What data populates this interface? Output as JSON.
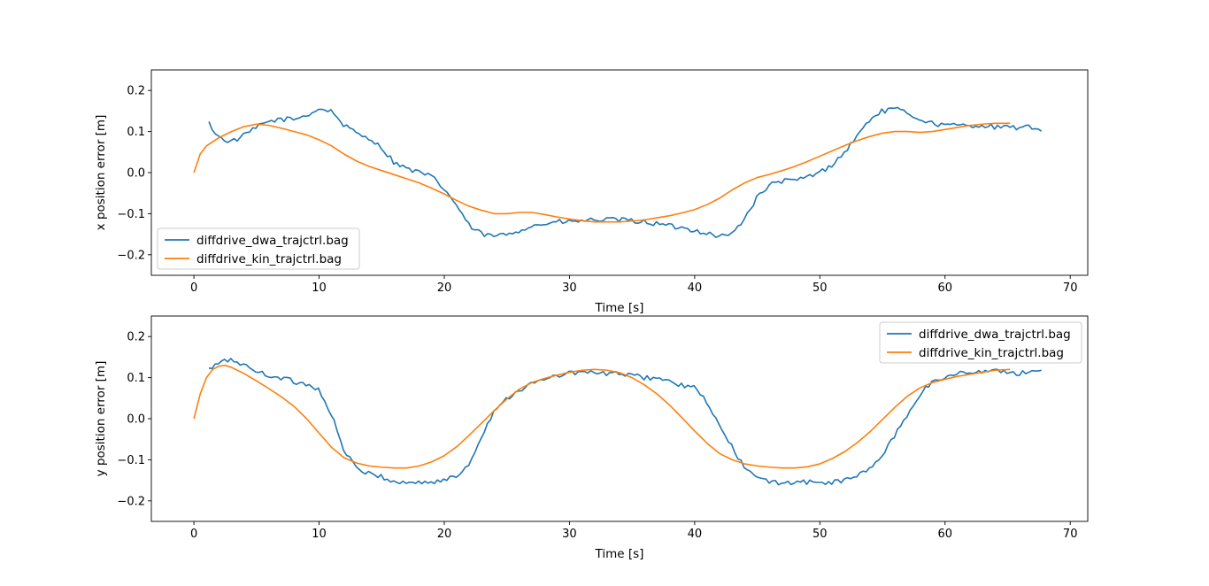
{
  "chart_data": [
    {
      "type": "line",
      "xlabel": "Time [s]",
      "ylabel": "x position error [m]",
      "xlim": [
        -3.4,
        71.4
      ],
      "ylim": [
        -0.25,
        0.25
      ],
      "xticks": [
        0,
        10,
        20,
        30,
        40,
        50,
        60,
        70
      ],
      "yticks": [
        -0.2,
        -0.1,
        0.0,
        0.1,
        0.2
      ],
      "xtick_labels": [
        "0",
        "10",
        "20",
        "30",
        "40",
        "50",
        "60",
        "70"
      ],
      "ytick_labels": [
        "−0.2",
        "−0.1",
        "0.0",
        "0.1",
        "0.2"
      ],
      "grid": false,
      "legend_position": "lower-left",
      "series": [
        {
          "name": "diffdrive_dwa_trajctrl.bag",
          "color": "#1f77b4",
          "noise": 0.006,
          "x": [
            1.2,
            2,
            3,
            4,
            5,
            6,
            7,
            8,
            9,
            10,
            11,
            12,
            13,
            14,
            15,
            16,
            17,
            18,
            19,
            20,
            21,
            22,
            23,
            24,
            25,
            26,
            27,
            28,
            29,
            30,
            32,
            34,
            36,
            38,
            40,
            42,
            43,
            44,
            45,
            46,
            47,
            48,
            49,
            50,
            51,
            52,
            53,
            54,
            55,
            56,
            57,
            58,
            59,
            60,
            61,
            62,
            63,
            64,
            65,
            66,
            67,
            67.8
          ],
          "y": [
            0.12,
            0.085,
            0.075,
            0.09,
            0.11,
            0.125,
            0.13,
            0.13,
            0.14,
            0.155,
            0.15,
            0.115,
            0.095,
            0.085,
            0.06,
            0.025,
            0.01,
            0.0,
            -0.01,
            -0.04,
            -0.08,
            -0.13,
            -0.15,
            -0.155,
            -0.15,
            -0.14,
            -0.13,
            -0.125,
            -0.12,
            -0.12,
            -0.115,
            -0.115,
            -0.12,
            -0.13,
            -0.14,
            -0.155,
            -0.15,
            -0.11,
            -0.06,
            -0.03,
            -0.02,
            -0.02,
            -0.01,
            0.0,
            0.02,
            0.05,
            0.09,
            0.13,
            0.15,
            0.155,
            0.145,
            0.13,
            0.12,
            0.115,
            0.115,
            0.115,
            0.115,
            0.11,
            0.11,
            0.11,
            0.11,
            0.105
          ]
        },
        {
          "name": "diffdrive_kin_trajctrl.bag",
          "color": "#ff7f0e",
          "noise": 0,
          "x": [
            0,
            0.5,
            1,
            2,
            3,
            4,
            5,
            6,
            7,
            8,
            9,
            10,
            11,
            12,
            13,
            14,
            15,
            16,
            17,
            18,
            19,
            20,
            21,
            22,
            23,
            24,
            25,
            26,
            27,
            28,
            29,
            30,
            31,
            32,
            33,
            34,
            35,
            36,
            37,
            38,
            39,
            40,
            41,
            42,
            43,
            44,
            45,
            46,
            47,
            48,
            49,
            50,
            51,
            52,
            53,
            54,
            55,
            56,
            57,
            58,
            59,
            60,
            61,
            62,
            63,
            64,
            65.2
          ],
          "y": [
            0.0,
            0.045,
            0.065,
            0.085,
            0.1,
            0.112,
            0.118,
            0.115,
            0.108,
            0.1,
            0.092,
            0.08,
            0.065,
            0.045,
            0.028,
            0.015,
            0.005,
            -0.005,
            -0.015,
            -0.025,
            -0.038,
            -0.052,
            -0.068,
            -0.082,
            -0.092,
            -0.1,
            -0.1,
            -0.097,
            -0.097,
            -0.102,
            -0.108,
            -0.113,
            -0.117,
            -0.12,
            -0.12,
            -0.12,
            -0.118,
            -0.115,
            -0.11,
            -0.105,
            -0.098,
            -0.09,
            -0.078,
            -0.062,
            -0.042,
            -0.025,
            -0.012,
            -0.004,
            0.005,
            0.015,
            0.027,
            0.04,
            0.053,
            0.066,
            0.078,
            0.088,
            0.096,
            0.1,
            0.1,
            0.098,
            0.1,
            0.105,
            0.11,
            0.115,
            0.118,
            0.12,
            0.12
          ]
        }
      ]
    },
    {
      "type": "line",
      "xlabel": "Time [s]",
      "ylabel": "y position error [m]",
      "xlim": [
        -3.4,
        71.4
      ],
      "ylim": [
        -0.25,
        0.25
      ],
      "xticks": [
        0,
        10,
        20,
        30,
        40,
        50,
        60,
        70
      ],
      "yticks": [
        -0.2,
        -0.1,
        0.0,
        0.1,
        0.2
      ],
      "xtick_labels": [
        "0",
        "10",
        "20",
        "30",
        "40",
        "50",
        "60",
        "70"
      ],
      "ytick_labels": [
        "−0.2",
        "−0.1",
        "0.0",
        "0.1",
        "0.2"
      ],
      "grid": false,
      "legend_position": "upper-right",
      "series": [
        {
          "name": "diffdrive_dwa_trajctrl.bag",
          "color": "#1f77b4",
          "noise": 0.006,
          "x": [
            1.2,
            2,
            3,
            4,
            5,
            6,
            7,
            8,
            9,
            10,
            11,
            12,
            13,
            14,
            15,
            16,
            17,
            18,
            19,
            20,
            21,
            22,
            23,
            24,
            25,
            26,
            27,
            28,
            29,
            30,
            31,
            32,
            33,
            34,
            35,
            36,
            37,
            38,
            39,
            40,
            41,
            42,
            43,
            44,
            45,
            46,
            47,
            48,
            49,
            50,
            51,
            52,
            53,
            54,
            55,
            56,
            57,
            58,
            59,
            60,
            61,
            62,
            63,
            64,
            65,
            66,
            67,
            67.8
          ],
          "y": [
            0.12,
            0.135,
            0.145,
            0.13,
            0.115,
            0.105,
            0.1,
            0.09,
            0.085,
            0.07,
            0.01,
            -0.08,
            -0.12,
            -0.135,
            -0.14,
            -0.155,
            -0.155,
            -0.155,
            -0.155,
            -0.15,
            -0.14,
            -0.11,
            -0.04,
            0.02,
            0.05,
            0.07,
            0.085,
            0.095,
            0.105,
            0.11,
            0.115,
            0.11,
            0.11,
            0.11,
            0.105,
            0.1,
            0.1,
            0.09,
            0.08,
            0.075,
            0.04,
            -0.02,
            -0.07,
            -0.12,
            -0.145,
            -0.155,
            -0.155,
            -0.155,
            -0.155,
            -0.155,
            -0.155,
            -0.15,
            -0.14,
            -0.12,
            -0.09,
            -0.04,
            0.01,
            0.06,
            0.09,
            0.1,
            0.11,
            0.115,
            0.115,
            0.115,
            0.115,
            0.11,
            0.115,
            0.118
          ]
        },
        {
          "name": "diffdrive_kin_trajctrl.bag",
          "color": "#ff7f0e",
          "noise": 0,
          "x": [
            0,
            0.5,
            1,
            1.5,
            2,
            2.5,
            3,
            4,
            5,
            6,
            7,
            8,
            9,
            10,
            11,
            12,
            13,
            14,
            15,
            16,
            17,
            18,
            19,
            20,
            21,
            22,
            23,
            24,
            25,
            26,
            27,
            28,
            29,
            30,
            31,
            32,
            33,
            34,
            35,
            36,
            37,
            38,
            39,
            40,
            41,
            42,
            43,
            44,
            45,
            46,
            47,
            48,
            49,
            50,
            51,
            52,
            53,
            54,
            55,
            56,
            57,
            58,
            59,
            60,
            61,
            62,
            63,
            64,
            65.2
          ],
          "y": [
            0.0,
            0.06,
            0.1,
            0.12,
            0.128,
            0.13,
            0.125,
            0.11,
            0.092,
            0.073,
            0.053,
            0.03,
            0.0,
            -0.035,
            -0.07,
            -0.095,
            -0.108,
            -0.115,
            -0.118,
            -0.12,
            -0.12,
            -0.115,
            -0.105,
            -0.09,
            -0.068,
            -0.04,
            -0.01,
            0.02,
            0.048,
            0.072,
            0.088,
            0.098,
            0.106,
            0.113,
            0.118,
            0.12,
            0.118,
            0.112,
            0.1,
            0.082,
            0.06,
            0.033,
            0.002,
            -0.03,
            -0.06,
            -0.085,
            -0.1,
            -0.11,
            -0.115,
            -0.118,
            -0.12,
            -0.12,
            -0.117,
            -0.11,
            -0.097,
            -0.08,
            -0.058,
            -0.032,
            -0.002,
            0.028,
            0.055,
            0.075,
            0.088,
            0.096,
            0.103,
            0.108,
            0.113,
            0.118,
            0.12
          ]
        }
      ]
    }
  ]
}
